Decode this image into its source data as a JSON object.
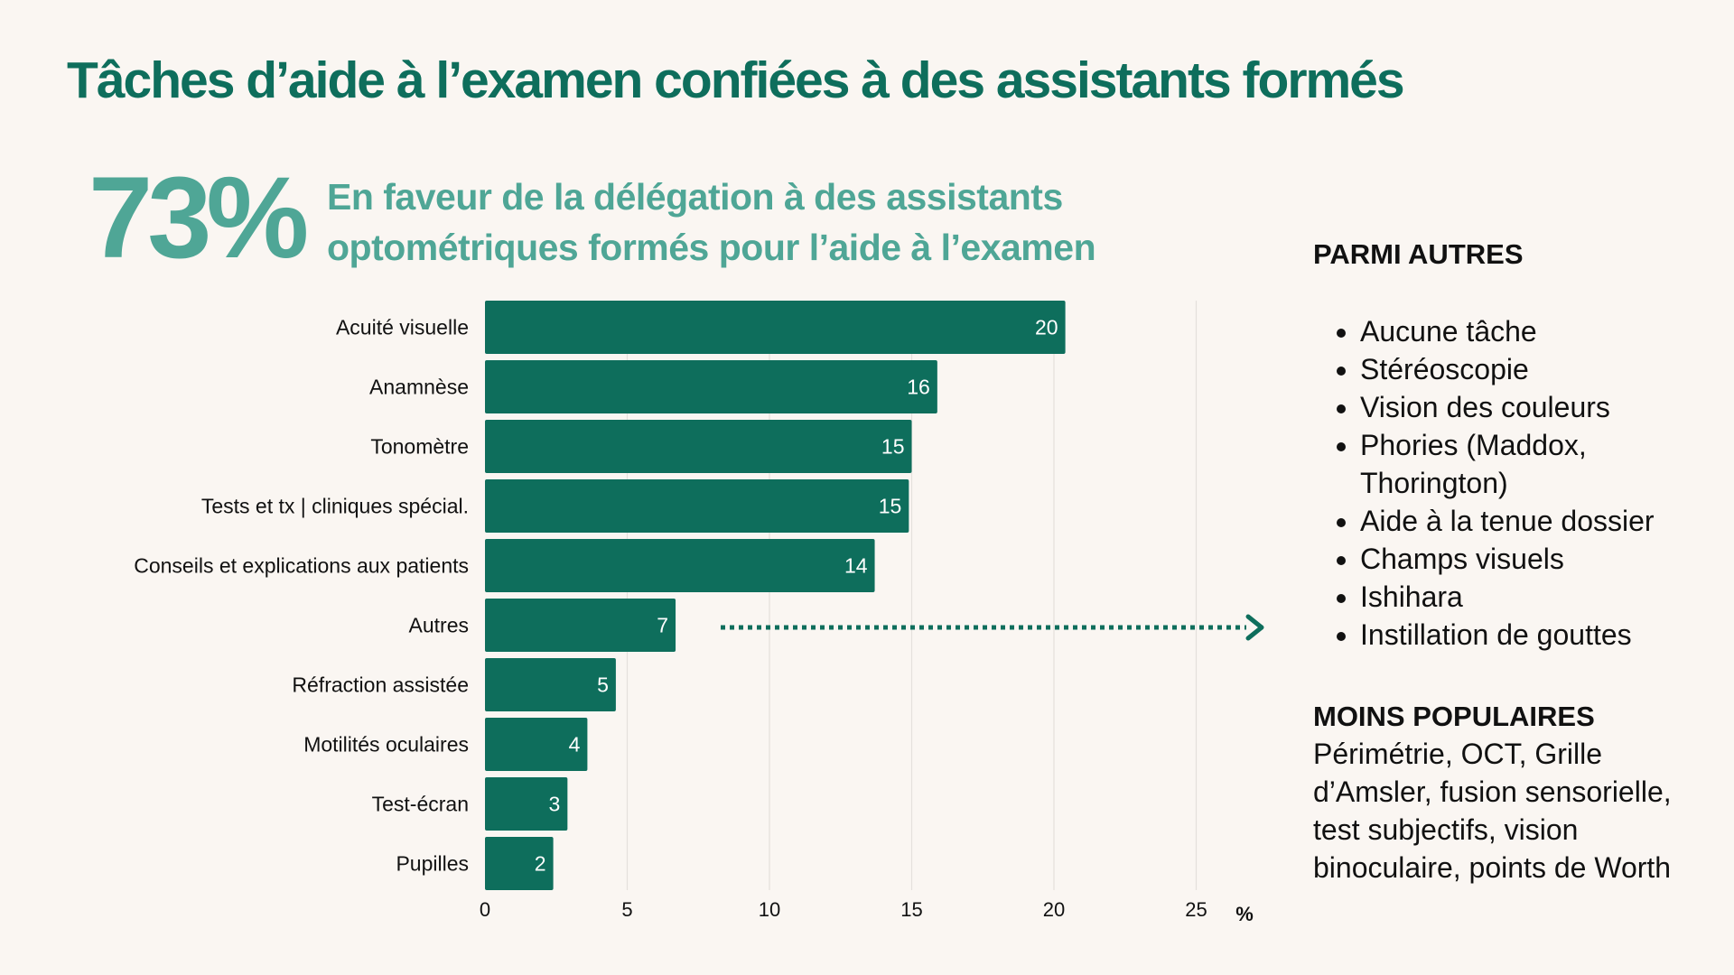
{
  "title": "Tâches d’aide à l’examen confiées à des assistants formés",
  "headline": {
    "stat": "73%",
    "line1": "En faveur de la délégation à des assistants",
    "line2": "optométriques formés pour l’aide à l’examen"
  },
  "colors": {
    "bar": "#0e6e5c",
    "accent": "#4fa696",
    "background": "#faf6f2"
  },
  "chart_data": {
    "type": "bar",
    "orientation": "horizontal",
    "categories": [
      "Acuité visuelle",
      "Anamnèse",
      "Tonomètre",
      "Tests et tx | cliniques spécial.",
      "Conseils et explications aux patients",
      "Autres",
      "Réfraction assistée",
      "Motilités oculaires",
      "Test-écran",
      "Pupilles"
    ],
    "values": [
      20.4,
      15.9,
      15,
      14.9,
      13.7,
      6.7,
      4.6,
      3.6,
      2.9,
      2.4
    ],
    "labels": [
      "20",
      "16",
      "15",
      "15",
      "14",
      "7",
      "5",
      "4",
      "3",
      "2"
    ],
    "xticks": [
      "0",
      "5",
      "10",
      "15",
      "20",
      "25"
    ],
    "xlim": [
      0,
      27
    ],
    "xlabel": "%",
    "grid": true
  },
  "side": {
    "others_title": "PARMI AUTRES",
    "others": [
      "Aucune tâche",
      "Stéréoscopie",
      "Vision des couleurs",
      "Phories (Maddox, Thorington)",
      "Aide à la tenue dossier",
      "Champs visuels",
      "Ishihara",
      "Instillation de gouttes"
    ],
    "less_title": "MOINS POPULAIRES",
    "less_text": "Périmétrie, OCT, Grille d’Amsler, fusion sensorielle, test subjectifs, vision binoculaire, points de Worth"
  }
}
